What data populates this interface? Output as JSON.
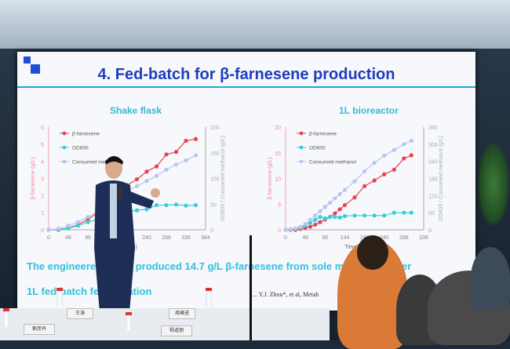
{
  "slide": {
    "title": "4. Fed-batch for β-farnesene production",
    "caption_line1": "The engineered strain produced 14.7 g/L β-farnesene from sole methanol under",
    "caption_line2": "1L fed-batch fermentation",
    "reference": "... Y.J. Zhou*, et al, Metab",
    "accent_color": "#1f3dbb"
  },
  "name_cards": [
    "郭彦丹",
    "王涛",
    "周雍进",
    "杨道朋"
  ],
  "chart_data": [
    {
      "type": "line",
      "title": "Shake flask",
      "xlabel": "Time (h)",
      "ylabel": "β-farnesene (g/L)",
      "y2label": "OD600 / Consumed methanol (g/L)",
      "xticks": [
        0,
        48,
        96,
        144,
        192,
        240,
        288,
        336,
        384
      ],
      "yticks": [
        0,
        1,
        2,
        3,
        4,
        5,
        6
      ],
      "y2ticks": [
        0,
        50,
        100,
        150,
        200
      ],
      "xlim": [
        0,
        384
      ],
      "ylim": [
        0,
        6
      ],
      "y2lim": [
        0,
        200
      ],
      "legend_position": "top-left",
      "x": [
        0,
        24,
        48,
        72,
        96,
        120,
        144,
        168,
        192,
        216,
        240,
        264,
        288,
        312,
        336,
        360
      ],
      "series": [
        {
          "name": "β-farnesene",
          "axis": "left",
          "color": "#e8424f",
          "values": [
            0,
            0,
            0.1,
            0.3,
            0.6,
            1.0,
            1.5,
            2.0,
            2.6,
            2.95,
            3.4,
            3.7,
            4.4,
            4.55,
            5.2,
            5.3
          ]
        },
        {
          "name": "OD600",
          "axis": "right",
          "color": "#35cfd8",
          "values": [
            0,
            1,
            3,
            8,
            15,
            20,
            25,
            30,
            35,
            38,
            40,
            48,
            48,
            49,
            47,
            48
          ]
        },
        {
          "name": "Consumed methanol",
          "axis": "right",
          "color": "#b8c6ee",
          "values": [
            0,
            2,
            8,
            15,
            25,
            35,
            50,
            65,
            75,
            85,
            95,
            105,
            117,
            127,
            135,
            145
          ]
        }
      ]
    },
    {
      "type": "line",
      "title": "1L bioreactor",
      "xlabel": "Time (h)",
      "ylabel": "β-farnesene (g/L)",
      "y2label": "OD600 / Consumed methanol (g/L)",
      "xticks": [
        0,
        48,
        96,
        144,
        192,
        240,
        288,
        336
      ],
      "yticks": [
        0,
        5,
        10,
        15,
        20
      ],
      "y2ticks": [
        0,
        60,
        120,
        180,
        240,
        300,
        360
      ],
      "xlim": [
        0,
        336
      ],
      "ylim": [
        0,
        20
      ],
      "y2lim": [
        0,
        360
      ],
      "legend_position": "top-left",
      "x": [
        0,
        12,
        24,
        36,
        48,
        60,
        72,
        84,
        96,
        108,
        120,
        132,
        144,
        168,
        192,
        216,
        240,
        264,
        288,
        306
      ],
      "series": [
        {
          "name": "β-farnesene",
          "axis": "left",
          "color": "#e8424f",
          "values": [
            0,
            0,
            0,
            0.2,
            0.4,
            0.6,
            1,
            1.5,
            2,
            2.5,
            3.2,
            4,
            4.8,
            6.3,
            8.5,
            9.6,
            10.8,
            11.7,
            13.9,
            14.5
          ]
        },
        {
          "name": "OD600",
          "axis": "right",
          "color": "#35cfd8",
          "values": [
            0,
            2,
            4,
            8,
            15,
            25,
            35,
            45,
            40,
            45,
            45,
            43,
            48,
            50,
            50,
            50,
            50,
            60,
            60,
            60
          ]
        },
        {
          "name": "Consumed methanol",
          "axis": "right",
          "color": "#b8c6ee",
          "values": [
            0,
            2,
            5,
            10,
            20,
            35,
            50,
            65,
            80,
            95,
            110,
            125,
            140,
            170,
            205,
            235,
            260,
            280,
            300,
            312
          ]
        }
      ]
    }
  ]
}
